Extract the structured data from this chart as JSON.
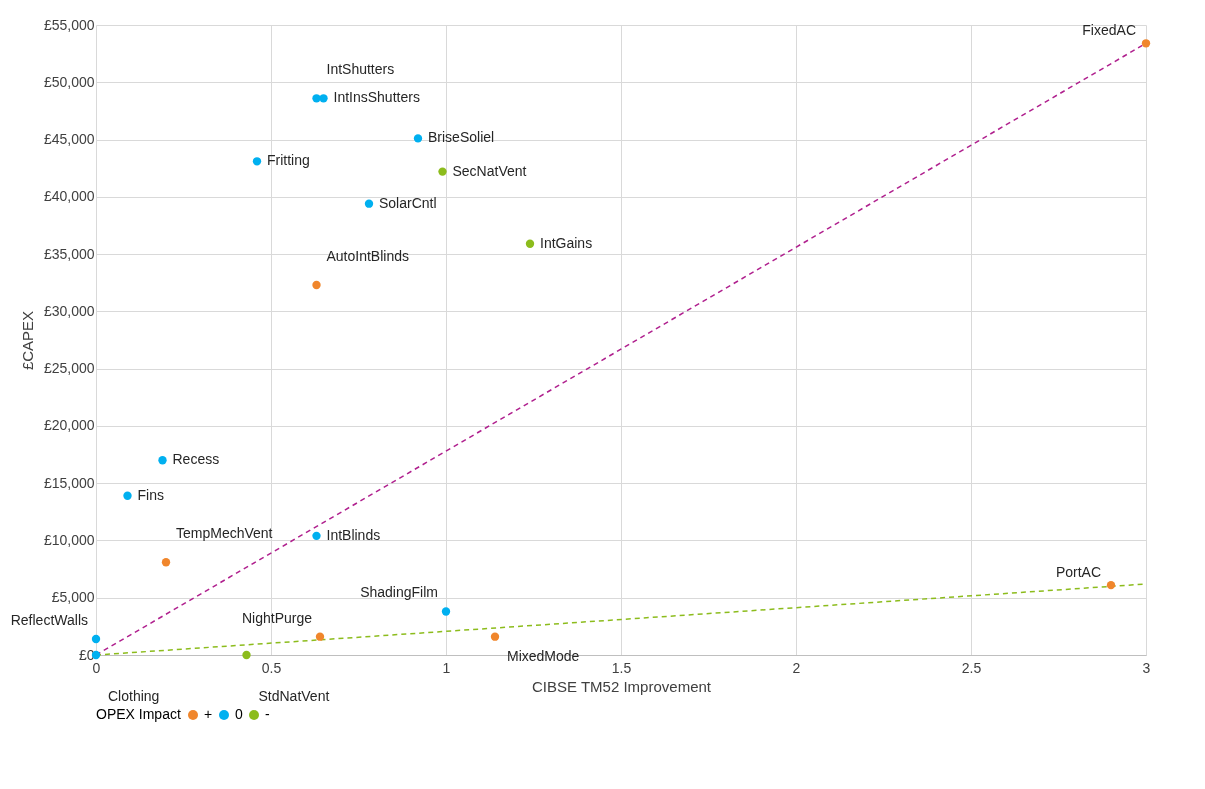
{
  "chart_data": {
    "type": "scatter",
    "xlabel": "CIBSE TM52 Improvement",
    "ylabel": "£CAPEX",
    "legend_title": "OPEX Impact",
    "legend": "bottom",
    "grid": true,
    "marker": "circle",
    "xlim": [
      0,
      3
    ],
    "xticks": [
      0,
      0.5,
      1,
      1.5,
      2,
      2.5,
      3
    ],
    "ylim": [
      0,
      55000
    ],
    "yticks": [
      {
        "value": 0,
        "label": "£0"
      },
      {
        "value": 5000,
        "label": "£5,000"
      },
      {
        "value": 10000,
        "label": "£10,000"
      },
      {
        "value": 15000,
        "label": "£15,000"
      },
      {
        "value": 20000,
        "label": "£20,000"
      },
      {
        "value": 25000,
        "label": "£25,000"
      },
      {
        "value": 30000,
        "label": "£30,000"
      },
      {
        "value": 35000,
        "label": "£35,000"
      },
      {
        "value": 40000,
        "label": "£40,000"
      },
      {
        "value": 45000,
        "label": "£45,000"
      },
      {
        "value": 50000,
        "label": "£50,000"
      },
      {
        "value": 55000,
        "label": "£55,000"
      }
    ],
    "series": [
      {
        "name": "+",
        "color": "#f0862c",
        "x": [
          3.0,
          0.63,
          0.2,
          2.9,
          0.64,
          1.14
        ],
        "values": [
          53400,
          32300,
          8100,
          6100,
          1600,
          1600
        ],
        "value_labels": [
          "FixedAC",
          "AutoIntBlinds",
          "TempMechVent",
          "PortAC",
          "NightPurge",
          "MixedMode"
        ]
      },
      {
        "name": "0",
        "color": "#00b0f0",
        "x": [
          0,
          0,
          0.09,
          0.19,
          0.46,
          0.63,
          0.65,
          0.92,
          0.78,
          0.63,
          1.0
        ],
        "values": [
          1400,
          0,
          13900,
          17000,
          43100,
          48600,
          48600,
          45100,
          39400,
          10400,
          3800
        ],
        "value_labels": [
          "ReflectWalls",
          "Clothing",
          "Fins",
          "Recess",
          "Fritting",
          "IntShutters",
          "IntInsShutters",
          "BriseSoliel",
          "SolarCntl",
          "IntBlinds",
          "ShadingFilm"
        ]
      },
      {
        "name": "-",
        "color": "#8cbc1c",
        "x": [
          0.99,
          1.24,
          0.43
        ],
        "values": [
          42200,
          35900,
          0
        ],
        "value_labels": [
          "SecNatVent",
          "IntGains",
          "StdNatVent"
        ]
      },
      {
        "type": "line",
        "color": "#b0208e",
        "line_style": "dashed",
        "marker": "none",
        "x": [
          0,
          3
        ],
        "values": [
          0,
          53400
        ]
      },
      {
        "type": "line",
        "color": "#8cbc1c",
        "line_style": "dashed",
        "marker": "none",
        "x": [
          0,
          3
        ],
        "values": [
          0,
          6200
        ]
      }
    ]
  }
}
